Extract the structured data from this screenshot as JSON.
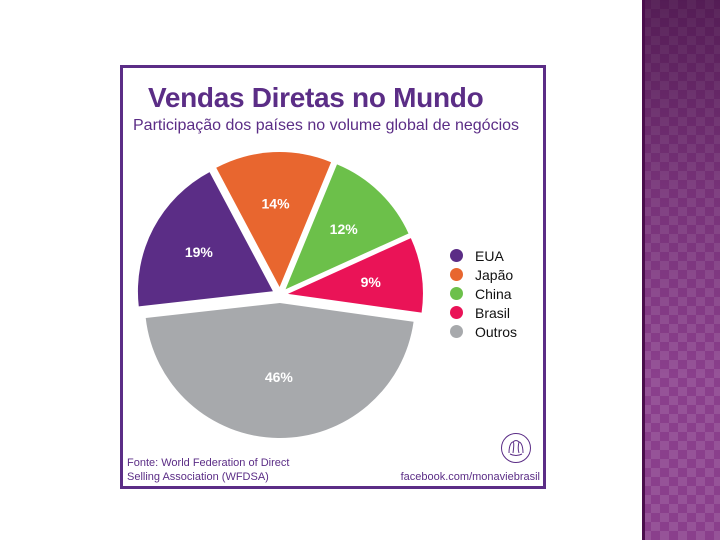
{
  "chart_data": {
    "type": "pie",
    "title": "Vendas Diretas no Mundo",
    "subtitle": "Participação dos países no volume global de negócios",
    "categories": [
      "EUA",
      "Japão",
      "China",
      "Brasil",
      "Outros"
    ],
    "values": [
      19,
      14,
      12,
      9,
      46
    ],
    "labels": [
      "19%",
      "14%",
      "12%",
      "9%",
      "46%"
    ],
    "colors": [
      "#5b2d86",
      "#e8662f",
      "#6cc04a",
      "#ea1357",
      "#a7a9ac"
    ],
    "legend_placement": "right",
    "exploded": true
  },
  "footer": {
    "source_line1": "Fonte: World Federation of Direct",
    "source_line2": "Selling Association (WFDSA)",
    "facebook": "facebook.com/monaviebrasil"
  },
  "icons": {
    "logo": "monavie-logo-icon"
  }
}
